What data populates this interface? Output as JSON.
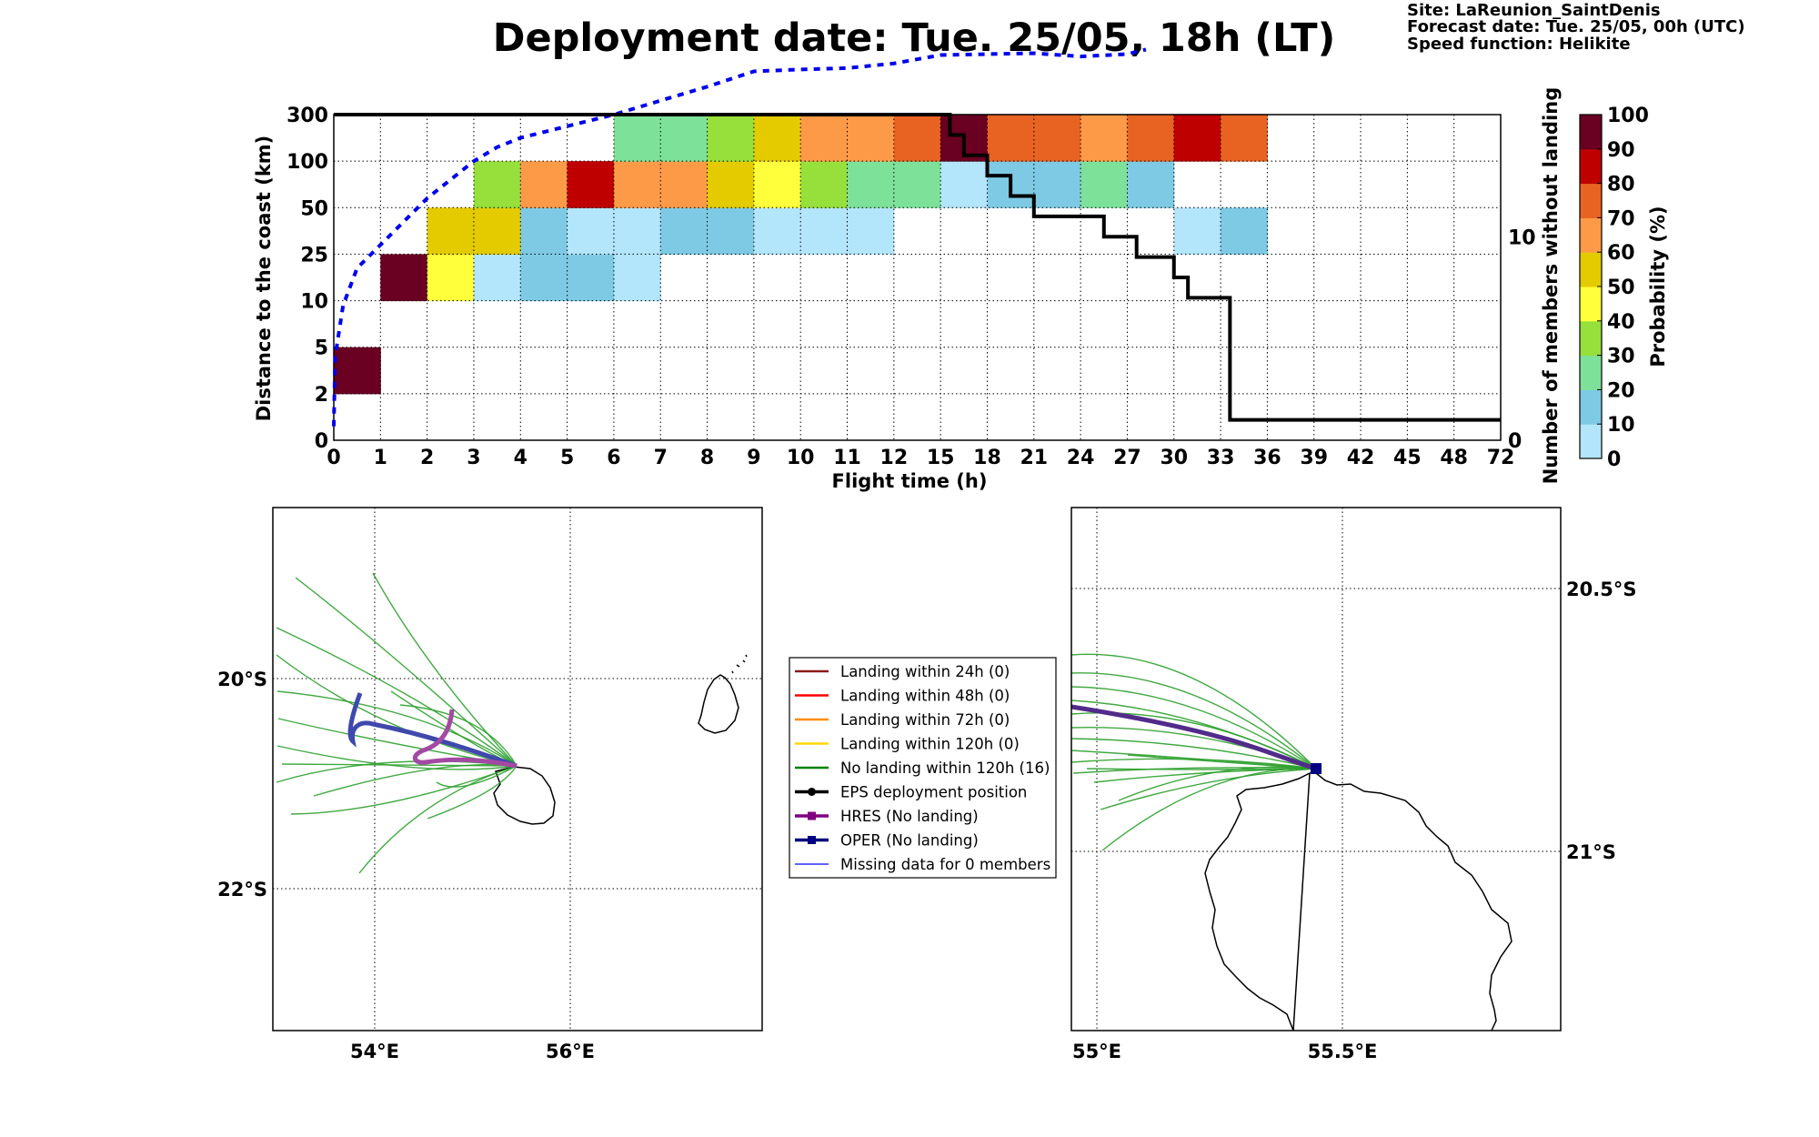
{
  "title": "Deployment date: Tue. 25/05, 18h (LT)",
  "info": {
    "site": "Site: LaReunion_SaintDenis",
    "forecast": "Forecast date: Tue. 25/05, 00h (UTC)",
    "speed": "Speed function: Helikite"
  },
  "chart_data": [
    {
      "type": "heatmap",
      "xlabel": "Flight time (h)",
      "ylabel": "Distance to the coast (km)",
      "y2label": "Number of members without landing",
      "colorbar_label": "Probability (%)",
      "x_ticks": [
        "0",
        "1",
        "2",
        "3",
        "4",
        "5",
        "6",
        "7",
        "8",
        "9",
        "10",
        "11",
        "12",
        "15",
        "18",
        "21",
        "24",
        "27",
        "30",
        "33",
        "36",
        "39",
        "42",
        "45",
        "48",
        "72"
      ],
      "y_ticks": [
        "0",
        "2",
        "5",
        "10",
        "25",
        "50",
        "100",
        "300"
      ],
      "y2_ticks": [
        "0",
        "10"
      ],
      "y2_range": [
        0,
        16
      ],
      "colorbar_ticks": [
        "0",
        "10",
        "20",
        "30",
        "40",
        "50",
        "60",
        "70",
        "80",
        "90",
        "100"
      ],
      "colorbar_colors": [
        "#b3e5fb",
        "#7ecae4",
        "#7ee19a",
        "#97e03c",
        "#ffff3c",
        "#e4cb00",
        "#fd9a48",
        "#e86322",
        "#be0000",
        "#6a0022"
      ],
      "probability_cells": [
        {
          "x": 0,
          "y": 1,
          "p": 95
        },
        {
          "x": 1,
          "y": 3,
          "p": 95
        },
        {
          "x": 2,
          "y": 3,
          "p": 45
        },
        {
          "x": 2,
          "y": 4,
          "p": 55
        },
        {
          "x": 3,
          "y": 3,
          "p": 5
        },
        {
          "x": 3,
          "y": 4,
          "p": 55
        },
        {
          "x": 3,
          "y": 5,
          "p": 35
        },
        {
          "x": 4,
          "y": 3,
          "p": 15
        },
        {
          "x": 4,
          "y": 4,
          "p": 15
        },
        {
          "x": 4,
          "y": 5,
          "p": 65
        },
        {
          "x": 5,
          "y": 3,
          "p": 15
        },
        {
          "x": 5,
          "y": 4,
          "p": 5
        },
        {
          "x": 5,
          "y": 5,
          "p": 85
        },
        {
          "x": 6,
          "y": 3,
          "p": 5
        },
        {
          "x": 6,
          "y": 4,
          "p": 5
        },
        {
          "x": 6,
          "y": 5,
          "p": 65
        },
        {
          "x": 6,
          "y": 6,
          "p": 25
        },
        {
          "x": 7,
          "y": 4,
          "p": 15
        },
        {
          "x": 7,
          "y": 5,
          "p": 65
        },
        {
          "x": 7,
          "y": 6,
          "p": 25
        },
        {
          "x": 8,
          "y": 4,
          "p": 15
        },
        {
          "x": 8,
          "y": 5,
          "p": 55
        },
        {
          "x": 8,
          "y": 6,
          "p": 35
        },
        {
          "x": 9,
          "y": 4,
          "p": 5
        },
        {
          "x": 9,
          "y": 5,
          "p": 45
        },
        {
          "x": 9,
          "y": 6,
          "p": 55
        },
        {
          "x": 10,
          "y": 4,
          "p": 5
        },
        {
          "x": 10,
          "y": 5,
          "p": 35
        },
        {
          "x": 10,
          "y": 6,
          "p": 65
        },
        {
          "x": 11,
          "y": 4,
          "p": 5
        },
        {
          "x": 11,
          "y": 5,
          "p": 25
        },
        {
          "x": 11,
          "y": 6,
          "p": 65
        },
        {
          "x": 12,
          "y": 5,
          "p": 25
        },
        {
          "x": 12,
          "y": 6,
          "p": 75
        },
        {
          "x": 13,
          "y": 5,
          "p": 5
        },
        {
          "x": 13,
          "y": 6,
          "p": 95
        },
        {
          "x": 14,
          "y": 5,
          "p": 15
        },
        {
          "x": 14,
          "y": 6,
          "p": 75
        },
        {
          "x": 15,
          "y": 5,
          "p": 15
        },
        {
          "x": 15,
          "y": 6,
          "p": 75
        },
        {
          "x": 16,
          "y": 5,
          "p": 25
        },
        {
          "x": 16,
          "y": 6,
          "p": 65
        },
        {
          "x": 17,
          "y": 5,
          "p": 15
        },
        {
          "x": 17,
          "y": 6,
          "p": 75
        },
        {
          "x": 18,
          "y": 4,
          "p": 5
        },
        {
          "x": 18,
          "y": 6,
          "p": 85
        },
        {
          "x": 19,
          "y": 4,
          "p": 15
        },
        {
          "x": 19,
          "y": 6,
          "p": 75
        }
      ],
      "median_distance_line": {
        "style": "blue dotted",
        "x": [
          0,
          0.03,
          0.2,
          0.5,
          1,
          1.5,
          2,
          2.5,
          3,
          3.5,
          4,
          5,
          6,
          7,
          8,
          9,
          10,
          11,
          12,
          13,
          14,
          15,
          16,
          17,
          17.4
        ],
        "y": [
          0.3,
          1.8,
          2.9,
          3.7,
          4.2,
          4.7,
          5.2,
          5.6,
          6.0,
          6.3,
          6.5,
          6.75,
          7.0,
          7.3,
          7.6,
          7.93,
          7.97,
          8.0,
          8.1,
          8.28,
          8.3,
          8.32,
          8.25,
          8.3,
          8.4
        ]
      },
      "members_without_landing": {
        "style": "black step",
        "x": [
          0,
          13.2,
          13.2,
          13.5,
          13.5,
          14.0,
          14.0,
          14.5,
          14.5,
          15.0,
          15.0,
          16.5,
          16.5,
          17.2,
          17.2,
          18.0,
          18.0,
          18.3,
          18.3,
          19.2,
          19.2,
          25
        ],
        "y": [
          16,
          16,
          15,
          15,
          14,
          14,
          13,
          13,
          12,
          12,
          11,
          11,
          10,
          10,
          9,
          9,
          8,
          8,
          7,
          7,
          1,
          1
        ]
      }
    },
    {
      "type": "scatter",
      "panel": "map-overview",
      "x_ticks": [
        "54°E",
        "56°E"
      ],
      "y_ticks": [
        "20°S",
        "22°S"
      ],
      "xlim": [
        52.95,
        57.95
      ],
      "ylim": [
        -23.4,
        -18.4
      ]
    },
    {
      "type": "scatter",
      "panel": "map-zoom",
      "x_ticks": [
        "55°E",
        "55.5°E"
      ],
      "y_ticks": [
        "20.5°S",
        "21°S"
      ],
      "xlim": [
        54.95,
        55.95
      ],
      "ylim": [
        -21.38,
        -20.38
      ]
    }
  ],
  "legend": {
    "items": [
      {
        "label": "Landing within 24h (0)",
        "color": "#8b1a1a",
        "kind": "line"
      },
      {
        "label": "Landing within 48h (0)",
        "color": "#ff0000",
        "kind": "line"
      },
      {
        "label": "Landing within 72h (0)",
        "color": "#ff8c00",
        "kind": "line"
      },
      {
        "label": "Landing within 120h (0)",
        "color": "#ffd700",
        "kind": "line"
      },
      {
        "label": "No landing within 120h (16)",
        "color": "#008000",
        "kind": "line"
      },
      {
        "label": "EPS deployment position",
        "color": "#000000",
        "kind": "dot"
      },
      {
        "label": "HRES (No landing)",
        "color": "#800080",
        "kind": "square"
      },
      {
        "label": "OPER (No landing)",
        "color": "#000080",
        "kind": "square"
      },
      {
        "label": "Missing data for 0 members",
        "color": "#0000ff",
        "kind": "thin"
      }
    ]
  }
}
